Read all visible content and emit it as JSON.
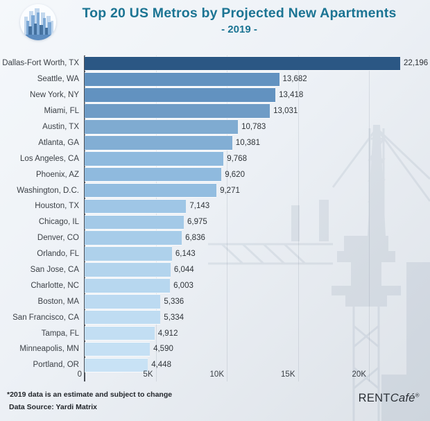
{
  "header": {
    "title": "Top 20 US Metros by Projected New Apartments",
    "subtitle": "- 2019 -",
    "title_color": "#1b7493",
    "icon": "city-skyline-icon"
  },
  "chart_data": {
    "type": "bar",
    "orientation": "horizontal",
    "title": "Top 20 US Metros by Projected New Apartments",
    "subtitle": "- 2019 -",
    "categories": [
      "Dallas-Fort Worth, TX",
      "Seattle, WA",
      "New York, NY",
      "Miami, FL",
      "Austin, TX",
      "Atlanta, GA",
      "Los Angeles, CA",
      "Phoenix, AZ",
      "Washington, D.C.",
      "Houston, TX",
      "Chicago, IL",
      "Denver, CO",
      "Orlando, FL",
      "San Jose, CA",
      "Charlotte, NC",
      "Boston, MA",
      "San Francisco, CA",
      "Tampa, FL",
      "Minneapolis, MN",
      "Portland, OR"
    ],
    "values": [
      22196,
      13682,
      13418,
      13031,
      10783,
      10381,
      9768,
      9620,
      9271,
      7143,
      6975,
      6836,
      6143,
      6044,
      6003,
      5336,
      5334,
      4912,
      4590,
      4448
    ],
    "value_labels": [
      "22,196",
      "13,682",
      "13,418",
      "13,031",
      "10,783",
      "10,381",
      "9,768",
      "9,620",
      "9,271",
      "7,143",
      "6,975",
      "6,836",
      "6,143",
      "6,044",
      "6,003",
      "5,336",
      "5,334",
      "4,912",
      "4,590",
      "4,448"
    ],
    "bar_colors": [
      "#2b5784",
      "#6292c0",
      "#6292c0",
      "#6f9cc6",
      "#7fabd1",
      "#82aed4",
      "#8fbade",
      "#8fbade",
      "#93bde0",
      "#9fc6e6",
      "#a3c9e7",
      "#a7cce9",
      "#aed1eb",
      "#b3d4ed",
      "#b7d7ef",
      "#bcdaf1",
      "#bfdcf2",
      "#c2def3",
      "#c5e0f4",
      "#c8e2f5"
    ],
    "x_ticks": [
      {
        "label": "0",
        "value": 0
      },
      {
        "label": "5K",
        "value": 5000
      },
      {
        "label": "10K",
        "value": 10000
      },
      {
        "label": "15K",
        "value": 15000
      },
      {
        "label": "20K",
        "value": 20000
      }
    ],
    "xlim": [
      0,
      24000
    ],
    "grid": "vertical",
    "legend": "none",
    "xlabel": "",
    "ylabel": ""
  },
  "footer": {
    "note1": "*2019 data is an estimate and subject to change",
    "note2": "Data Source: Yardi Matrix",
    "brand": {
      "part1": "RENT",
      "part2": "Café",
      "reg": "®"
    }
  }
}
